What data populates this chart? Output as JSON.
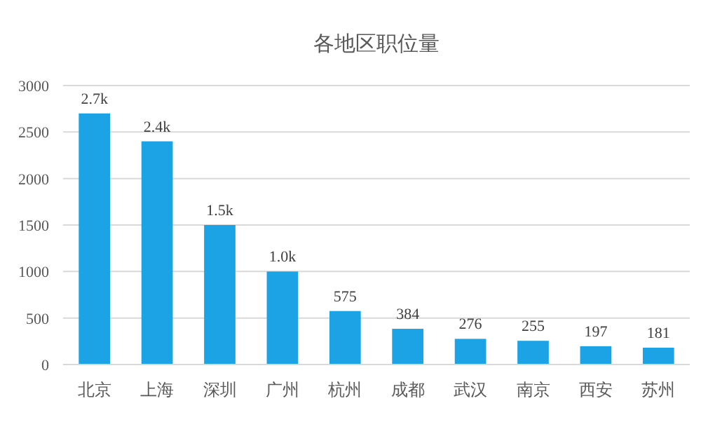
{
  "chart_data": {
    "type": "bar",
    "title": "各地区职位量",
    "categories": [
      "北京",
      "上海",
      "深圳",
      "广州",
      "杭州",
      "成都",
      "武汉",
      "南京",
      "西安",
      "苏州"
    ],
    "values": [
      2700,
      2400,
      1500,
      1000,
      575,
      384,
      276,
      255,
      197,
      181
    ],
    "value_labels": [
      "2.7k",
      "2.4k",
      "1.5k",
      "1.0k",
      "575",
      "384",
      "276",
      "255",
      "197",
      "181"
    ],
    "color": "#1ba3e6",
    "ylim": [
      0,
      3000
    ],
    "yticks": [
      0,
      500,
      1000,
      1500,
      2000,
      2500,
      3000
    ],
    "grid": "y"
  }
}
